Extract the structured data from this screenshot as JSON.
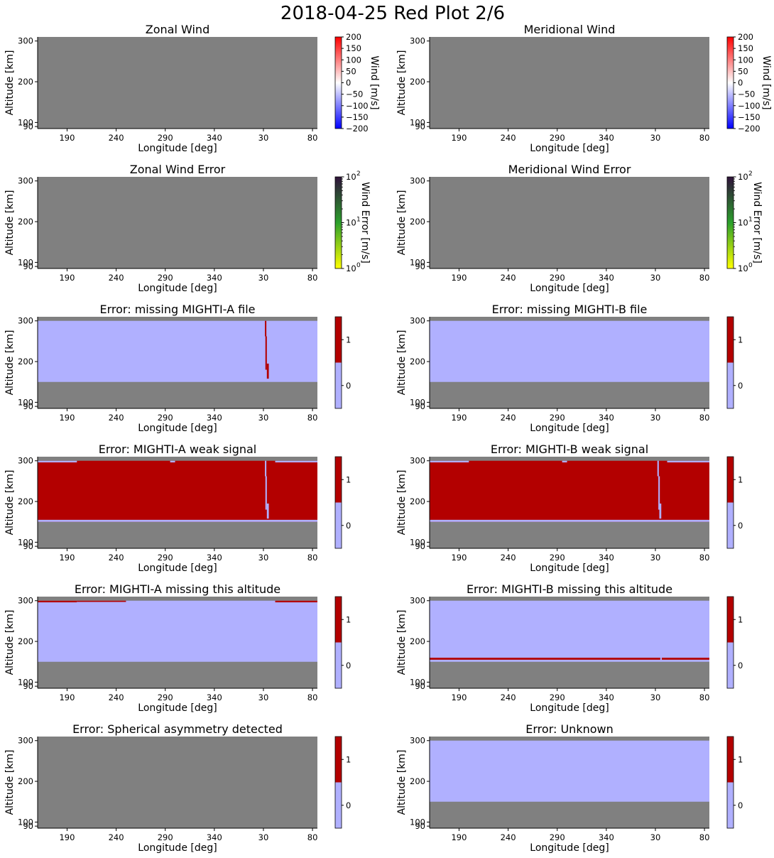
{
  "figure": {
    "title": "2018-04-25 Red Plot 2/6",
    "background": "#ffffff",
    "nodata_color": "#808080"
  },
  "colormaps": {
    "wind": [
      "#0000ff",
      "#ffffff",
      "#ff0000"
    ],
    "error_log": [
      "#ffff00",
      "#2ca02c",
      "#30123b"
    ],
    "flag": {
      "0": "#b0b0ff",
      "1": "#b30000"
    }
  },
  "chart_data": [
    {
      "type": "heatmap",
      "title": "Zonal Wind",
      "xlabel": "Longitude [deg]",
      "ylabel": "Altitude [km]",
      "xticks": [
        "190",
        "240",
        "290",
        "340",
        "30",
        "80"
      ],
      "yticks": [
        "300",
        "200",
        "100",
        "90"
      ],
      "ylim": [
        85,
        310
      ],
      "fill": "nodata",
      "colorbar": {
        "type": "linear",
        "label": "Wind [m/s]",
        "range": [
          -200,
          200
        ],
        "ticks": [
          "200",
          "150",
          "100",
          "50",
          "0",
          "−50",
          "−100",
          "−150",
          "−200"
        ],
        "cmap": "wind"
      }
    },
    {
      "type": "heatmap",
      "title": "Meridional Wind",
      "xlabel": "Longitude [deg]",
      "ylabel": "Altitude [km]",
      "xticks": [
        "190",
        "240",
        "290",
        "340",
        "30",
        "80"
      ],
      "yticks": [
        "300",
        "200",
        "100",
        "90"
      ],
      "ylim": [
        85,
        310
      ],
      "fill": "nodata",
      "colorbar": {
        "type": "linear",
        "label": "Wind [m/s]",
        "range": [
          -200,
          200
        ],
        "ticks": [
          "200",
          "150",
          "100",
          "50",
          "0",
          "−50",
          "−100",
          "−150",
          "−200"
        ],
        "cmap": "wind"
      }
    },
    {
      "type": "heatmap",
      "title": "Zonal Wind Error",
      "xlabel": "Longitude [deg]",
      "ylabel": "Altitude [km]",
      "xticks": [
        "190",
        "240",
        "290",
        "340",
        "30",
        "80"
      ],
      "yticks": [
        "300",
        "200",
        "100",
        "90"
      ],
      "ylim": [
        85,
        310
      ],
      "fill": "nodata",
      "colorbar": {
        "type": "log",
        "label": "Wind Error [m/s]",
        "range": [
          1,
          100
        ],
        "ticks": [
          "10",
          "10",
          "10"
        ],
        "tick_exponents": [
          "2",
          "1",
          "0"
        ],
        "cmap": "error_log"
      }
    },
    {
      "type": "heatmap",
      "title": "Meridional Wind Error",
      "xlabel": "Longitude [deg]",
      "ylabel": "Altitude [km]",
      "xticks": [
        "190",
        "240",
        "290",
        "340",
        "30",
        "80"
      ],
      "yticks": [
        "300",
        "200",
        "100",
        "90"
      ],
      "ylim": [
        85,
        310
      ],
      "fill": "nodata",
      "colorbar": {
        "type": "log",
        "label": "Wind Error [m/s]",
        "range": [
          1,
          100
        ],
        "ticks": [
          "10",
          "10",
          "10"
        ],
        "tick_exponents": [
          "2",
          "1",
          "0"
        ],
        "cmap": "error_log"
      }
    },
    {
      "type": "heatmap",
      "title": "Error: missing MIGHTI-A file",
      "xlabel": "Longitude [deg]",
      "ylabel": "Altitude [km]",
      "xticks": [
        "190",
        "240",
        "290",
        "340",
        "30",
        "80"
      ],
      "yticks": [
        "300",
        "200",
        "100",
        "90"
      ],
      "ylim": [
        85,
        310
      ],
      "flag_band": {
        "alt_range": [
          150,
          300
        ],
        "base": 0
      },
      "flag_marks": [
        {
          "value": 1,
          "lon": [
            31.5,
            33.0
          ],
          "alt": [
            262,
            300
          ]
        },
        {
          "value": 1,
          "lon": [
            32.0,
            33.5
          ],
          "alt": [
            180,
            262
          ]
        },
        {
          "value": 1,
          "lon": [
            33.5,
            35.5
          ],
          "alt": [
            158,
            195
          ]
        }
      ],
      "colorbar": {
        "type": "categorical",
        "ticks": [
          "1",
          "0"
        ],
        "cmap": "flag"
      }
    },
    {
      "type": "heatmap",
      "title": "Error: missing MIGHTI-B file",
      "xlabel": "Longitude [deg]",
      "ylabel": "Altitude [km]",
      "xticks": [
        "190",
        "240",
        "290",
        "340",
        "30",
        "80"
      ],
      "yticks": [
        "300",
        "200",
        "100",
        "90"
      ],
      "ylim": [
        85,
        310
      ],
      "flag_band": {
        "alt_range": [
          150,
          300
        ],
        "base": 0
      },
      "flag_marks": [],
      "colorbar": {
        "type": "categorical",
        "ticks": [
          "1",
          "0"
        ],
        "cmap": "flag"
      }
    },
    {
      "type": "heatmap",
      "title": "Error: MIGHTI-A weak signal",
      "xlabel": "Longitude [deg]",
      "ylabel": "Altitude [km]",
      "xticks": [
        "190",
        "240",
        "290",
        "340",
        "30",
        "80"
      ],
      "yticks": [
        "300",
        "200",
        "100",
        "90"
      ],
      "ylim": [
        85,
        310
      ],
      "flag_band": {
        "alt_range": [
          150,
          300
        ],
        "base": 1
      },
      "flag_marks": [
        {
          "value": 0,
          "lon": [
            160,
            200
          ],
          "alt": [
            296,
            300
          ]
        },
        {
          "value": 0,
          "lon": [
            295,
            300
          ],
          "alt": [
            296,
            300
          ]
        },
        {
          "value": 0,
          "lon": [
            42,
            85
          ],
          "alt": [
            296,
            300
          ]
        },
        {
          "value": 0,
          "lon": [
            160,
            85
          ],
          "alt": [
            150,
            155
          ]
        },
        {
          "value": 0,
          "lon": [
            31.5,
            33.0
          ],
          "alt": [
            262,
            300
          ]
        },
        {
          "value": 0,
          "lon": [
            32.0,
            33.5
          ],
          "alt": [
            180,
            262
          ]
        },
        {
          "value": 0,
          "lon": [
            33.5,
            35.5
          ],
          "alt": [
            158,
            195
          ]
        }
      ],
      "colorbar": {
        "type": "categorical",
        "ticks": [
          "1",
          "0"
        ],
        "cmap": "flag"
      }
    },
    {
      "type": "heatmap",
      "title": "Error: MIGHTI-B weak signal",
      "xlabel": "Longitude [deg]",
      "ylabel": "Altitude [km]",
      "xticks": [
        "190",
        "240",
        "290",
        "340",
        "30",
        "80"
      ],
      "yticks": [
        "300",
        "200",
        "100",
        "90"
      ],
      "ylim": [
        85,
        310
      ],
      "flag_band": {
        "alt_range": [
          150,
          300
        ],
        "base": 1
      },
      "flag_marks": [
        {
          "value": 0,
          "lon": [
            160,
            200
          ],
          "alt": [
            296,
            300
          ]
        },
        {
          "value": 0,
          "lon": [
            295,
            300
          ],
          "alt": [
            296,
            300
          ]
        },
        {
          "value": 0,
          "lon": [
            42,
            85
          ],
          "alt": [
            296,
            300
          ]
        },
        {
          "value": 0,
          "lon": [
            160,
            85
          ],
          "alt": [
            150,
            155
          ]
        },
        {
          "value": 0,
          "lon": [
            32.0,
            33.5
          ],
          "alt": [
            262,
            300
          ]
        },
        {
          "value": 0,
          "lon": [
            33.0,
            34.5
          ],
          "alt": [
            180,
            262
          ]
        },
        {
          "value": 0,
          "lon": [
            34.0,
            36.0
          ],
          "alt": [
            158,
            195
          ]
        }
      ],
      "colorbar": {
        "type": "categorical",
        "ticks": [
          "1",
          "0"
        ],
        "cmap": "flag"
      }
    },
    {
      "type": "heatmap",
      "title": "Error: MIGHTI-A missing this altitude",
      "xlabel": "Longitude [deg]",
      "ylabel": "Altitude [km]",
      "xticks": [
        "190",
        "240",
        "290",
        "340",
        "30",
        "80"
      ],
      "yticks": [
        "300",
        "200",
        "100",
        "90"
      ],
      "ylim": [
        85,
        310
      ],
      "flag_band": {
        "alt_range": [
          150,
          300
        ],
        "base": 0
      },
      "flag_marks": [
        {
          "value": 1,
          "lon": [
            160,
            200
          ],
          "alt": [
            296,
            300
          ]
        },
        {
          "value": 1,
          "lon": [
            200,
            250
          ],
          "alt": [
            297,
            300
          ]
        },
        {
          "value": 1,
          "lon": [
            42,
            85
          ],
          "alt": [
            296,
            300
          ]
        }
      ],
      "colorbar": {
        "type": "categorical",
        "ticks": [
          "1",
          "0"
        ],
        "cmap": "flag"
      }
    },
    {
      "type": "heatmap",
      "title": "Error: MIGHTI-B missing this altitude",
      "xlabel": "Longitude [deg]",
      "ylabel": "Altitude [km]",
      "xticks": [
        "190",
        "240",
        "290",
        "340",
        "30",
        "80"
      ],
      "yticks": [
        "300",
        "200",
        "100",
        "90"
      ],
      "ylim": [
        85,
        310
      ],
      "flag_band": {
        "alt_range": [
          150,
          300
        ],
        "base": 0
      },
      "flag_marks": [
        {
          "value": 1,
          "lon": [
            160,
            35
          ],
          "alt": [
            155,
            160
          ]
        },
        {
          "value": 1,
          "lon": [
            36.5,
            85
          ],
          "alt": [
            155,
            160
          ]
        }
      ],
      "colorbar": {
        "type": "categorical",
        "ticks": [
          "1",
          "0"
        ],
        "cmap": "flag"
      }
    },
    {
      "type": "heatmap",
      "title": "Error: Spherical asymmetry detected",
      "xlabel": "Longitude [deg]",
      "ylabel": "Altitude [km]",
      "xticks": [
        "190",
        "240",
        "290",
        "340",
        "30",
        "80"
      ],
      "yticks": [
        "300",
        "200",
        "100",
        "90"
      ],
      "ylim": [
        85,
        310
      ],
      "fill": "nodata",
      "colorbar": {
        "type": "categorical",
        "ticks": [
          "1",
          "0"
        ],
        "cmap": "flag"
      }
    },
    {
      "type": "heatmap",
      "title": "Error: Unknown",
      "xlabel": "Longitude [deg]",
      "ylabel": "Altitude [km]",
      "xticks": [
        "190",
        "240",
        "290",
        "340",
        "30",
        "80"
      ],
      "yticks": [
        "300",
        "200",
        "100",
        "90"
      ],
      "ylim": [
        85,
        310
      ],
      "flag_band": {
        "alt_range": [
          150,
          300
        ],
        "base": 0
      },
      "flag_marks": [],
      "colorbar": {
        "type": "categorical",
        "ticks": [
          "1",
          "0"
        ],
        "cmap": "flag"
      }
    }
  ]
}
